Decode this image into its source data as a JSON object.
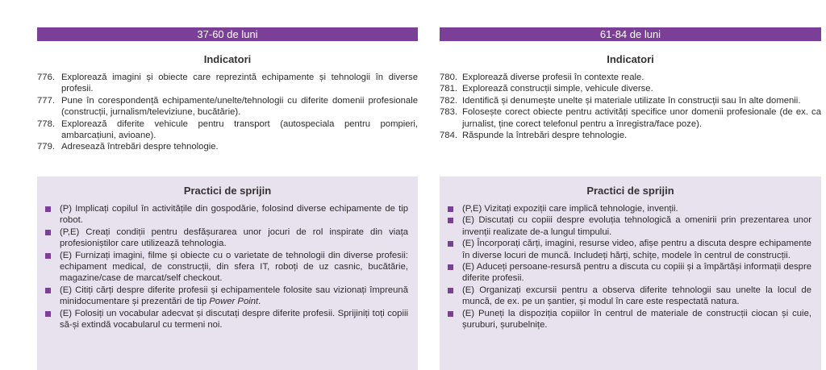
{
  "left": {
    "header": "37-60 de luni",
    "indicators_title": "Indicatori",
    "indicators": [
      {
        "num": "776.",
        "text": "Explorează imagini și obiecte care reprezintă echipamente și tehnologii în diverse profesii."
      },
      {
        "num": "777.",
        "text": "Pune în corespondență echipamente/unelte/tehnologii cu diferite domenii profesionale (construcții, jurnalism/televiziune, bucătărie)."
      },
      {
        "num": "778.",
        "text": "Explorează diferite vehicule pentru transport (autospeciala pentru pompieri, ambarcațiuni, avioane)."
      },
      {
        "num": "779.",
        "text": "Adresează întrebări despre tehnologie."
      }
    ],
    "practices_title": "Practici de sprijin",
    "practices": [
      {
        "text": "(P) Implicați copilul în activitățile din gospodărie, folosind diverse echipamente de tip robot."
      },
      {
        "text": "(P,E) Creați condiții pentru desfășurarea unor jocuri de rol inspirate din viața profesioniștilor care utilizează tehnologia."
      },
      {
        "text": "(E) Furnizați imagini, filme și obiecte cu o varietate de tehnologii din diverse profesii: echipament medical, de construcții, din sfera IT, roboți de uz casnic, bucătărie, magazine/case de marcat/self checkout."
      },
      {
        "text": "(E) Citiți cărți despre diferite profesii și echipamentele folosite sau vizionați împreună minidocumentare și prezentări de tip ",
        "italic": "Power Point",
        "after": "."
      },
      {
        "text": "(E) Folosiți un vocabular adecvat și discutați despre diferite profesii. Sprijiniți toți copiii să-și extindă vocabularul cu termeni noi."
      }
    ]
  },
  "right": {
    "header": "61-84 de luni",
    "indicators_title": "Indicatori",
    "indicators": [
      {
        "num": "780.",
        "text": "Explorează diverse profesii în contexte reale."
      },
      {
        "num": "781.",
        "text": "Explorează construcții simple, vehicule diverse."
      },
      {
        "num": "782.",
        "text": "Identifică și denumește unelte și materiale utilizate în construcții sau în alte domenii."
      },
      {
        "num": "783.",
        "text": "Folosește corect obiecte pentru activități specifice unor domenii profesionale (de ex. ca jurnalist, ține corect telefonul pentru a înregistra/face poze)."
      },
      {
        "num": "784.",
        "text": "Răspunde la întrebări despre tehnologie."
      }
    ],
    "practices_title": "Practici de sprijin",
    "practices": [
      {
        "text": "(P,E) Vizitați expoziții care implică tehnologie, invenții."
      },
      {
        "text": "(E) Discutați cu copiii despre evoluția tehnologică a omenirii prin prezentarea unor invenții realizate de-a lungul timpului."
      },
      {
        "text": "(E) Încorporați cărți, imagini, resurse video, afișe pentru a discuta despre echipamente în diverse locuri de muncă. Includeți hărți, schițe, modele în centrul de construcții."
      },
      {
        "text": "(E) Aduceți persoane-resursă pentru a discuta cu copiii și a împărtăși informații despre diferite profesii."
      },
      {
        "text": "(E) Organizați excursii pentru a observa diferite tehnologii sau unelte la locul de muncă, de ex. pe un șantier, și modul în care este respectată natura."
      },
      {
        "text": "(E) Puneți la dispoziția copiilor în centrul de materiale de construcții ciocan și cuie, șuruburi, șurubelnițe."
      }
    ]
  },
  "colors": {
    "accent": "#7B3F98",
    "box_background": "#E8E2EF"
  }
}
